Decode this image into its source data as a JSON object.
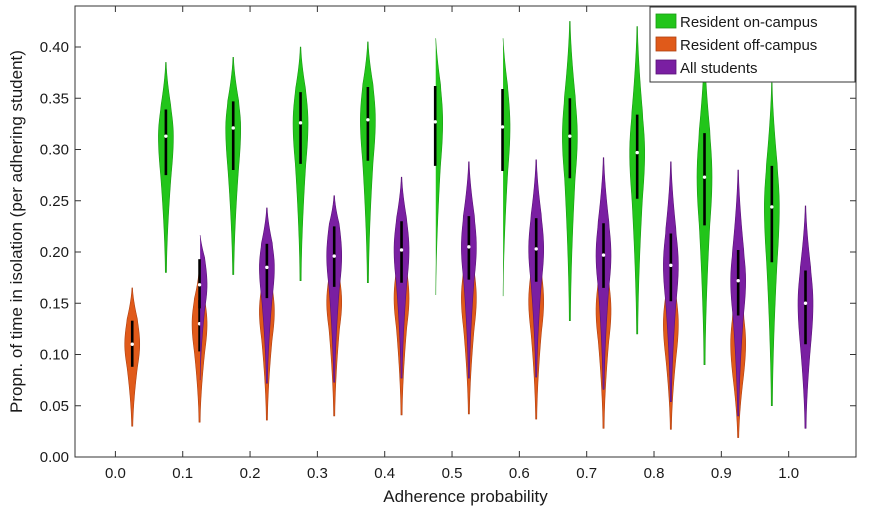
{
  "chart_data": {
    "type": "violin",
    "xlabel": "Adherence probability",
    "ylabel": "Propn. of time in isolation (per adhering student)",
    "categories": [
      "0.0",
      "0.1",
      "0.2",
      "0.3",
      "0.4",
      "0.5",
      "0.6",
      "0.7",
      "0.8",
      "0.9",
      "1.0"
    ],
    "ylim": [
      0,
      0.44
    ],
    "yticks": [
      "0.00",
      "0.05",
      "0.10",
      "0.15",
      "0.20",
      "0.25",
      "0.30",
      "0.35",
      "0.40"
    ],
    "legend_position": "top-right",
    "series": [
      {
        "name": "Resident on-campus",
        "color": "#22c51a",
        "stroke": "#1a9914",
        "x": [
          0.1,
          0.2,
          0.3,
          0.4,
          0.5,
          0.6,
          0.7,
          0.8,
          0.9,
          1.0
        ],
        "median": [
          0.313,
          0.321,
          0.326,
          0.329,
          0.327,
          0.322,
          0.313,
          0.297,
          0.273,
          0.244
        ],
        "q1": [
          0.275,
          0.28,
          0.286,
          0.289,
          0.284,
          0.279,
          0.272,
          0.252,
          0.226,
          0.19
        ],
        "q3": [
          0.339,
          0.347,
          0.356,
          0.361,
          0.362,
          0.359,
          0.35,
          0.334,
          0.316,
          0.284
        ],
        "min": [
          0.18,
          0.178,
          0.172,
          0.17,
          0.158,
          0.157,
          0.133,
          0.12,
          0.09,
          0.05
        ],
        "max": [
          0.385,
          0.39,
          0.4,
          0.405,
          0.415,
          0.415,
          0.425,
          0.42,
          0.395,
          0.365
        ]
      },
      {
        "name": "Resident off-campus",
        "color": "#e05a1a",
        "stroke": "#b04010",
        "x": [
          0.1,
          0.2,
          0.3,
          0.4,
          0.5,
          0.6,
          0.7,
          0.8,
          0.9,
          1.0
        ],
        "median": [
          0.11,
          0.13,
          0.142,
          0.151,
          0.155,
          0.155,
          0.152,
          0.143,
          0.13,
          0.111
        ],
        "q1": [
          0.088,
          0.103,
          0.115,
          0.125,
          0.127,
          0.125,
          0.122,
          0.113,
          0.098,
          0.078
        ],
        "q3": [
          0.133,
          0.153,
          0.166,
          0.176,
          0.182,
          0.182,
          0.18,
          0.171,
          0.157,
          0.139
        ],
        "min": [
          0.03,
          0.034,
          0.036,
          0.04,
          0.041,
          0.042,
          0.037,
          0.028,
          0.027,
          0.019
        ],
        "max": [
          0.165,
          0.185,
          0.208,
          0.22,
          0.23,
          0.24,
          0.24,
          0.24,
          0.231,
          0.22
        ]
      },
      {
        "name": "All students",
        "color": "#7a1fa2",
        "stroke": "#5a1278",
        "x": [
          0.1,
          0.2,
          0.3,
          0.4,
          0.5,
          0.6,
          0.7,
          0.8,
          0.9,
          1.0
        ],
        "median": [
          0.168,
          0.185,
          0.196,
          0.202,
          0.205,
          0.203,
          0.197,
          0.187,
          0.172,
          0.15
        ],
        "q1": [
          0.145,
          0.155,
          0.166,
          0.17,
          0.173,
          0.171,
          0.165,
          0.152,
          0.138,
          0.11
        ],
        "q3": [
          0.193,
          0.208,
          0.225,
          0.23,
          0.235,
          0.233,
          0.228,
          0.218,
          0.202,
          0.182
        ],
        "min": [
          0.075,
          0.072,
          0.073,
          0.077,
          0.077,
          0.078,
          0.066,
          0.054,
          0.04,
          0.028
        ],
        "max": [
          0.22,
          0.243,
          0.255,
          0.273,
          0.288,
          0.29,
          0.292,
          0.288,
          0.28,
          0.245
        ]
      }
    ]
  }
}
